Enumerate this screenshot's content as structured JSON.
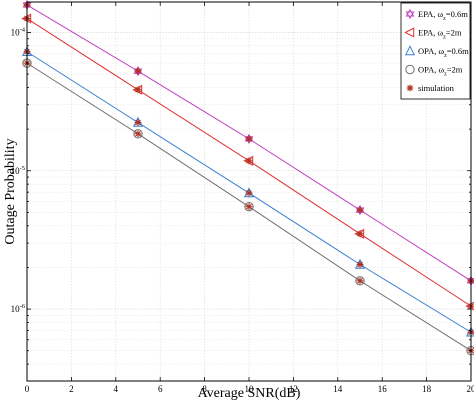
{
  "chart_data": {
    "type": "line",
    "xlabel": "Average SNR(dB)",
    "ylabel": "Outage Probability",
    "xlim": [
      0,
      20
    ],
    "ylim_log10": [
      -6.52,
      -3.78
    ],
    "yscale": "log",
    "grid": true,
    "legend_position": "top-right",
    "x_ticks": [
      0,
      2,
      4,
      6,
      8,
      10,
      12,
      14,
      16,
      18,
      20
    ],
    "y_ticks": [
      {
        "value": 0.0001,
        "base": "10",
        "exp": "-4"
      },
      {
        "value": 1e-05,
        "base": "10",
        "exp": "-5"
      },
      {
        "value": 1e-06,
        "base": "10",
        "exp": "-6"
      }
    ],
    "x": [
      0,
      5,
      10,
      15,
      20
    ],
    "series": [
      {
        "name": "EPA, ω_z=0.6m",
        "legend_main": "EPA, ω",
        "legend_sub": "z",
        "legend_rest": "=0.6m",
        "color": "#c040c0",
        "marker": "hexagram",
        "values": [
          0.000158,
          5.25e-05,
          1.7e-05,
          5.2e-06,
          1.6e-06
        ]
      },
      {
        "name": "EPA, ω_z=2m",
        "legend_main": "EPA, ω",
        "legend_sub": "z",
        "legend_rest": "=2m",
        "color": "#e03030",
        "marker": "triangle-left",
        "values": [
          0.000126,
          3.85e-05,
          1.18e-05,
          3.5e-06,
          1.05e-06
        ]
      },
      {
        "name": "OPA, ω_z=0.6m",
        "legend_main": "OPA, ω",
        "legend_sub": "z",
        "legend_rest": "=0.6m",
        "color": "#3a7fd0",
        "marker": "triangle-up",
        "values": [
          7.25e-05,
          2.23e-05,
          6.9e-06,
          2.1e-06,
          6.8e-07
        ]
      },
      {
        "name": "OPA, ω_z=2m",
        "legend_main": "OPA, ω",
        "legend_sub": "z",
        "legend_rest": "=2m",
        "color": "#707070",
        "marker": "circle",
        "values": [
          6e-05,
          1.85e-05,
          5.5e-06,
          1.6e-06,
          5e-07
        ]
      }
    ],
    "simulation": {
      "name": "simulation",
      "color": "#b03020",
      "marker": "asterisk"
    }
  }
}
